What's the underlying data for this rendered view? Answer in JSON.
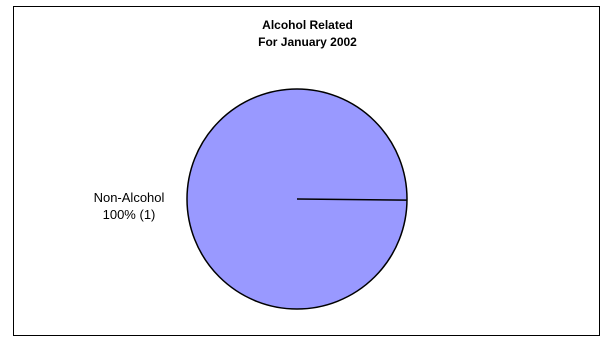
{
  "chart_data": {
    "type": "pie",
    "title_lines": [
      "Alcohol Related",
      "For January 2002"
    ],
    "slices": [
      {
        "name": "Non-Alcohol",
        "value": 1,
        "percent": "100%",
        "count_label": "(1)",
        "color": "#9999ff"
      }
    ],
    "legend": "none"
  }
}
